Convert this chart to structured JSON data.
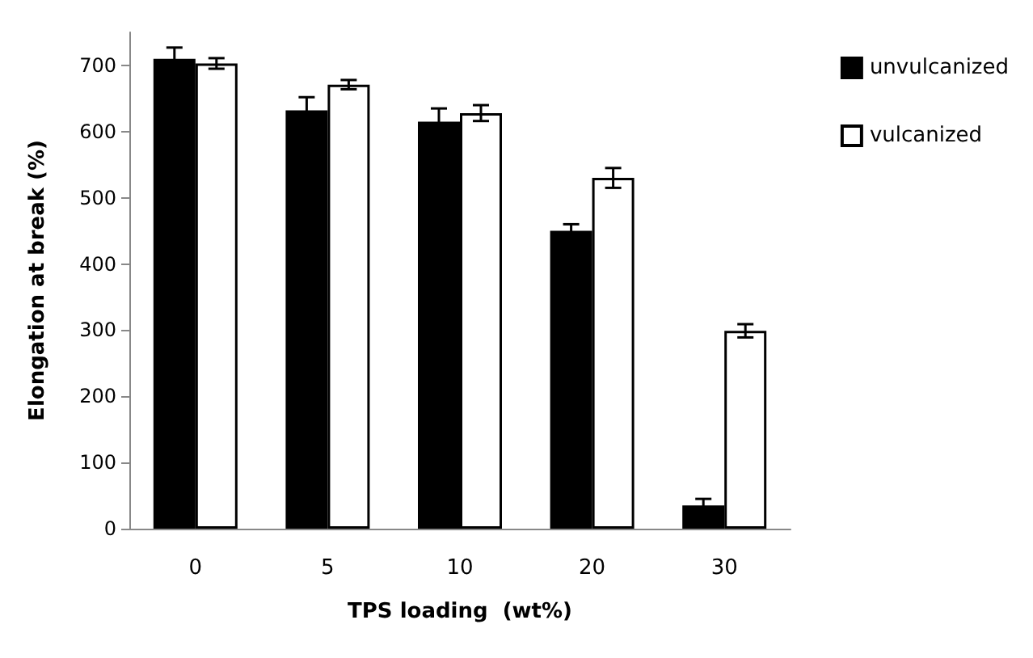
{
  "chart_data": {
    "type": "bar",
    "xlabel": "TPS loading  (wt%)",
    "ylabel": "Elongation at break (%)",
    "categories": [
      "0",
      "5",
      "10",
      "20",
      "30"
    ],
    "series": [
      {
        "name": "unvulcanized",
        "color": "#000000",
        "values": [
          710,
          632,
          615,
          450,
          35
        ],
        "errors": [
          17,
          20,
          20,
          10,
          10
        ]
      },
      {
        "name": "vulcanized",
        "color": "#ffffff",
        "values": [
          703,
          671,
          628,
          530,
          299
        ],
        "errors": [
          8,
          7,
          12,
          15,
          10
        ]
      }
    ],
    "ylim": [
      0,
      750
    ],
    "yticks": [
      0,
      100,
      200,
      300,
      400,
      500,
      600,
      700
    ],
    "grid": false,
    "legend": "top right"
  }
}
